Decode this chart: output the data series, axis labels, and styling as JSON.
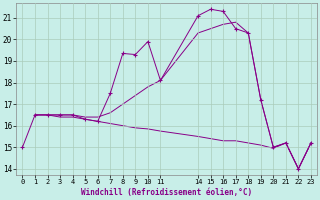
{
  "xlabel": "Windchill (Refroidissement éolien,°C)",
  "bg_color": "#c8eee8",
  "grid_color": "#aaccbb",
  "line_color": "#880088",
  "xlim": [
    -0.5,
    23.5
  ],
  "ylim": [
    13.7,
    21.7
  ],
  "xticks": [
    0,
    1,
    2,
    3,
    4,
    5,
    6,
    7,
    8,
    9,
    10,
    11,
    14,
    15,
    16,
    17,
    18,
    19,
    20,
    21,
    22,
    23
  ],
  "yticks": [
    14,
    15,
    16,
    17,
    18,
    19,
    20,
    21
  ],
  "line1_x": [
    0,
    1,
    2,
    3,
    4,
    5,
    6,
    7,
    8,
    9,
    10,
    11,
    14,
    15,
    16,
    17,
    18,
    19,
    20,
    21,
    22,
    23
  ],
  "line1_y": [
    15.0,
    16.5,
    16.5,
    16.5,
    16.5,
    16.3,
    16.2,
    17.5,
    19.35,
    19.3,
    19.9,
    18.1,
    21.1,
    21.4,
    21.3,
    20.5,
    20.3,
    17.2,
    15.0,
    15.2,
    14.0,
    15.2
  ],
  "line2_x": [
    1,
    2,
    3,
    4,
    5,
    6,
    7,
    8,
    9,
    10,
    11,
    14,
    15,
    16,
    17,
    18,
    19,
    20,
    21,
    22,
    23
  ],
  "line2_y": [
    16.5,
    16.5,
    16.5,
    16.5,
    16.4,
    16.4,
    16.6,
    17.0,
    17.4,
    17.8,
    18.1,
    20.3,
    20.5,
    20.7,
    20.8,
    20.3,
    17.2,
    15.0,
    15.2,
    14.0,
    15.2
  ],
  "line3_x": [
    1,
    2,
    3,
    4,
    5,
    6,
    7,
    8,
    9,
    10,
    11,
    14,
    15,
    16,
    17,
    18,
    19,
    20,
    21,
    22,
    23
  ],
  "line3_y": [
    16.5,
    16.5,
    16.4,
    16.4,
    16.3,
    16.2,
    16.1,
    16.0,
    15.9,
    15.85,
    15.75,
    15.5,
    15.4,
    15.3,
    15.3,
    15.2,
    15.1,
    14.95,
    15.2,
    14.0,
    15.2
  ]
}
